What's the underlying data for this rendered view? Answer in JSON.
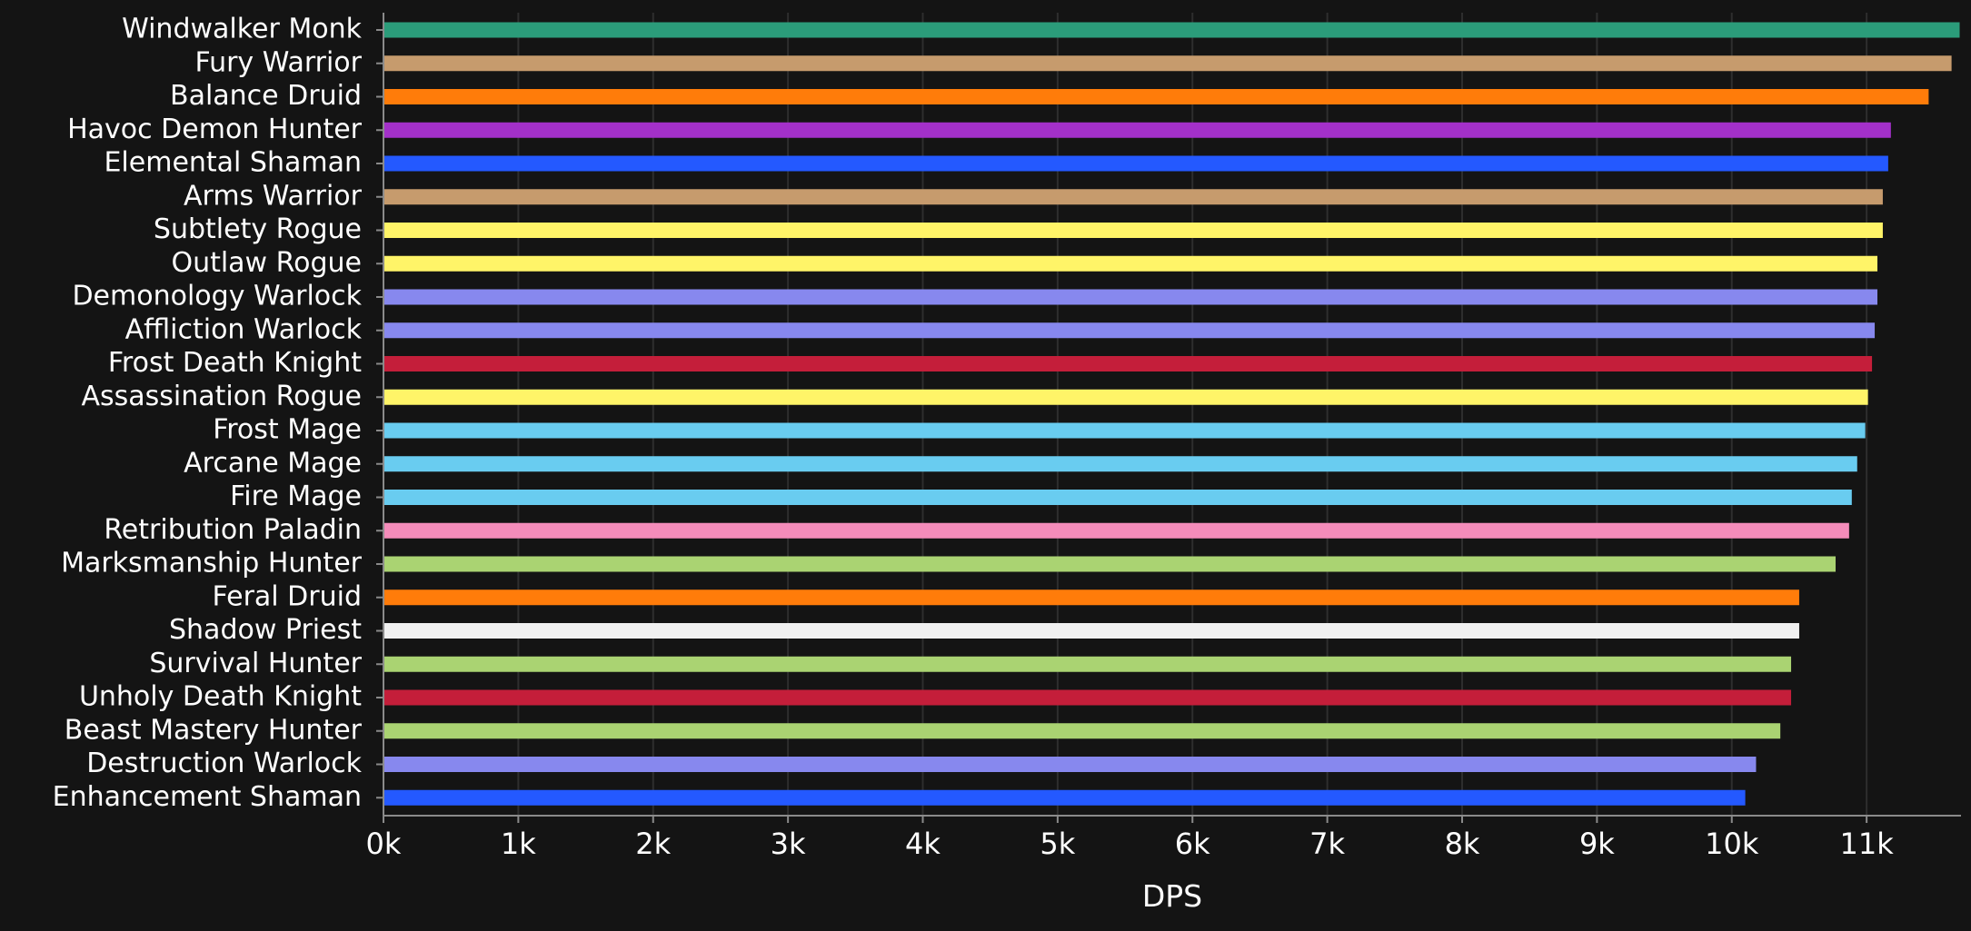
{
  "chart_data": {
    "type": "bar",
    "orientation": "horizontal",
    "xlabel": "DPS",
    "xlim": [
      0,
      11700
    ],
    "x_ticks": [
      0,
      1000,
      2000,
      3000,
      4000,
      5000,
      6000,
      7000,
      8000,
      9000,
      10000,
      11000
    ],
    "x_tick_labels": [
      "0k",
      "1k",
      "2k",
      "3k",
      "4k",
      "5k",
      "6k",
      "7k",
      "8k",
      "9k",
      "10k",
      "11k"
    ],
    "grid": "vertical",
    "categories": [
      "Windwalker Monk",
      "Fury Warrior",
      "Balance Druid",
      "Havoc Demon Hunter",
      "Elemental Shaman",
      "Arms Warrior",
      "Subtlety Rogue",
      "Outlaw Rogue",
      "Demonology Warlock",
      "Affliction Warlock",
      "Frost Death Knight",
      "Assassination Rogue",
      "Frost Mage",
      "Arcane Mage",
      "Fire Mage",
      "Retribution Paladin",
      "Marksmanship Hunter",
      "Feral Druid",
      "Shadow Priest",
      "Survival Hunter",
      "Unholy Death Knight",
      "Beast Mastery Hunter",
      "Destruction Warlock",
      "Enhancement Shaman"
    ],
    "values": [
      11690,
      11630,
      11460,
      11180,
      11160,
      11120,
      11120,
      11080,
      11080,
      11060,
      11040,
      11010,
      10990,
      10930,
      10890,
      10870,
      10770,
      10500,
      10500,
      10440,
      10440,
      10360,
      10180,
      10100
    ],
    "colors": [
      "#2b9c7a",
      "#c69b6d",
      "#ff7c0a",
      "#a330c9",
      "#2459ff",
      "#c69b6d",
      "#fff468",
      "#fff468",
      "#8788ee",
      "#8788ee",
      "#c41e3a",
      "#fff468",
      "#69ccf0",
      "#69ccf0",
      "#69ccf0",
      "#f48cba",
      "#aad372",
      "#ff7c0a",
      "#f0f0f0",
      "#aad372",
      "#c41e3a",
      "#aad372",
      "#8788ee",
      "#2459ff"
    ]
  }
}
